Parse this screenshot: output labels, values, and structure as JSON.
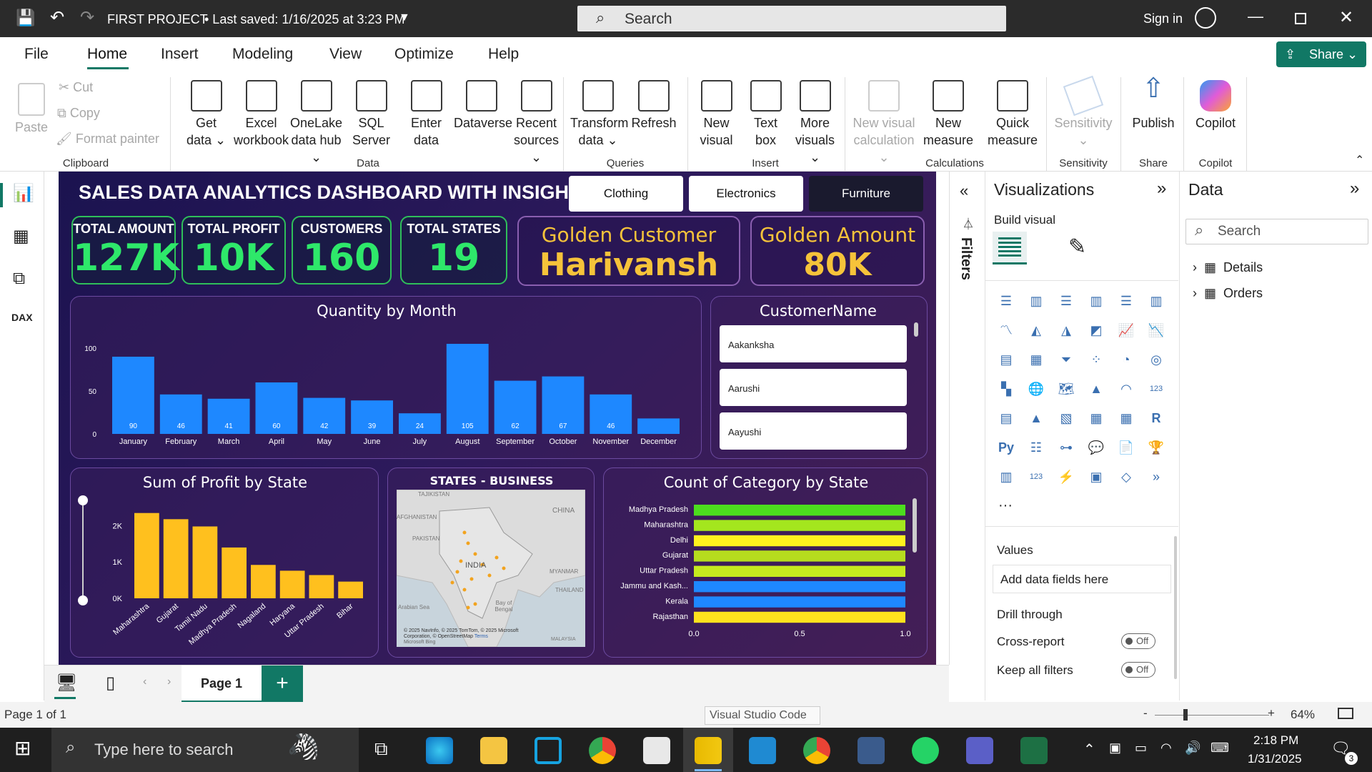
{
  "titlebar": {
    "project": "FIRST PROJECT",
    "saved": "• Last saved: 1/16/2025 at 3:23 PM",
    "search": "Search",
    "signin": "Sign in"
  },
  "menu": [
    "File",
    "Home",
    "Insert",
    "Modeling",
    "View",
    "Optimize",
    "Help"
  ],
  "share": "Share",
  "ribbon": {
    "clipboard": {
      "paste": "Paste",
      "cut": "Cut",
      "copy": "Copy",
      "format": "Format painter",
      "group": "Clipboard"
    },
    "data": [
      [
        "Get",
        "data ⌄"
      ],
      [
        "Excel",
        "workbook"
      ],
      [
        "OneLake",
        "data hub ⌄"
      ],
      [
        "SQL",
        "Server"
      ],
      [
        "Enter",
        "data"
      ],
      [
        "Dataverse",
        ""
      ],
      [
        "Recent",
        "sources ⌄"
      ]
    ],
    "data_group": "Data",
    "queries": [
      [
        "Transform",
        "data ⌄"
      ],
      [
        "Refresh",
        ""
      ]
    ],
    "queries_group": "Queries",
    "insert": [
      [
        "New",
        "visual"
      ],
      [
        "Text",
        "box"
      ],
      [
        "More",
        "visuals ⌄"
      ]
    ],
    "insert_group": "Insert",
    "calc": [
      [
        "New visual",
        "calculation ⌄"
      ],
      [
        "New",
        "measure"
      ],
      [
        "Quick",
        "measure"
      ]
    ],
    "calc_group": "Calculations",
    "sens": [
      "Sensitivity",
      "⌄"
    ],
    "sens_group": "Sensitivity",
    "publish": "Publish",
    "share_group": "Share",
    "copilot": "Copilot",
    "copilot_group": "Copilot"
  },
  "dashboard": {
    "title": "SALES DATA ANALYTICS DASHBOARD WITH INSIGHTS",
    "tabs": [
      "Clothing",
      "Electronics",
      "Furniture"
    ],
    "kpis": [
      {
        "label": "TOTAL AMOUNT",
        "value": "127K"
      },
      {
        "label": "TOTAL PROFIT",
        "value": "10K"
      },
      {
        "label": "CUSTOMERS",
        "value": "160"
      },
      {
        "label": "TOTAL STATES",
        "value": "19"
      }
    ],
    "golden_customer": {
      "label": "Golden Customer",
      "value": "Harivansh"
    },
    "golden_amount": {
      "label": "Golden Amount",
      "value": "80K"
    },
    "customer_slicer": {
      "title": "CustomerName",
      "items": [
        "Aakanksha",
        "Aarushi",
        "Aayushi"
      ]
    },
    "map": {
      "title": "STATES - BUSINESS",
      "labels": [
        "TAJIKISTAN",
        "AFGHANISTAN",
        "PAKISTAN",
        "INDIA",
        "CHINA",
        "MYANMAR",
        "THAILAND",
        "Arabian Sea",
        "Bay of Bengal",
        "MALAYSIA"
      ],
      "attribution": "© 2025 NavInfo, © 2025 TomTom, © 2025 Microsoft Corporation, © OpenStreetMap",
      "terms": "Terms",
      "bing": "Microsoft Bing"
    }
  },
  "chart_data": [
    {
      "type": "bar",
      "title": "Quantity by Month",
      "categories": [
        "January",
        "February",
        "March",
        "April",
        "May",
        "June",
        "July",
        "August",
        "September",
        "October",
        "November",
        "December"
      ],
      "values": [
        90,
        46,
        41,
        60,
        42,
        39,
        24,
        105,
        62,
        67,
        46,
        18
      ],
      "value_labels": [
        "90",
        "46",
        "41",
        "60",
        "42",
        "39",
        "24",
        "105",
        "62",
        "67",
        "46",
        ""
      ],
      "ylim": [
        0,
        110
      ],
      "yticks": [
        "100",
        "50",
        "0"
      ],
      "ytick_values": [
        100,
        50,
        0
      ],
      "color": "#1e88ff"
    },
    {
      "type": "bar",
      "title": "Sum of Profit by State",
      "categories": [
        "Maharashtra",
        "Gujarat",
        "Tamil Nadu",
        "Madhya Pradesh",
        "Nagaland",
        "Haryana",
        "Uttar Pradesh",
        "Bihar"
      ],
      "values": [
        2350,
        2180,
        1980,
        1400,
        920,
        760,
        640,
        460
      ],
      "ylim": [
        0,
        2600
      ],
      "yticks": [
        "2K",
        "1K",
        "0K"
      ],
      "ytick_values": [
        2000,
        1000,
        0
      ],
      "color": "#ffc01e"
    },
    {
      "type": "bar",
      "orientation": "horizontal",
      "title": "Count of Category by State",
      "categories": [
        "Madhya Pradesh",
        "Maharashtra",
        "Delhi",
        "Gujarat",
        "Uttar Pradesh",
        "Jammu and Kash...",
        "Kerala",
        "Rajasthan"
      ],
      "values": [
        1,
        1,
        1,
        1,
        1,
        1,
        1,
        1
      ],
      "colors": [
        "#4cdd1e",
        "#a4e61e",
        "#fff21e",
        "#b6dc1e",
        "#c6ea1e",
        "#1e88ff",
        "#1e88ff",
        "#ffe21e"
      ],
      "xlim": [
        0,
        1
      ],
      "xticks": [
        "0.0",
        "0.5",
        "1.0"
      ]
    }
  ],
  "filters": "Filters",
  "viz": {
    "title": "Visualizations",
    "build": "Build visual",
    "values": "Values",
    "add": "Add data fields here",
    "drill": "Drill through",
    "cross": "Cross-report",
    "keep": "Keep all filters",
    "off": "Off"
  },
  "datapane": {
    "title": "Data",
    "search": "Search",
    "items": [
      "Details",
      "Orders"
    ]
  },
  "pagebar": {
    "page": "Page 1",
    "add": "+"
  },
  "status": {
    "pages": "Page 1 of 1",
    "tooltip": "Visual Studio Code",
    "zoom": "64%"
  },
  "taskbar": {
    "search": "Type here to search",
    "time": "2:18 PM",
    "date": "1/31/2025",
    "notif": "3"
  }
}
